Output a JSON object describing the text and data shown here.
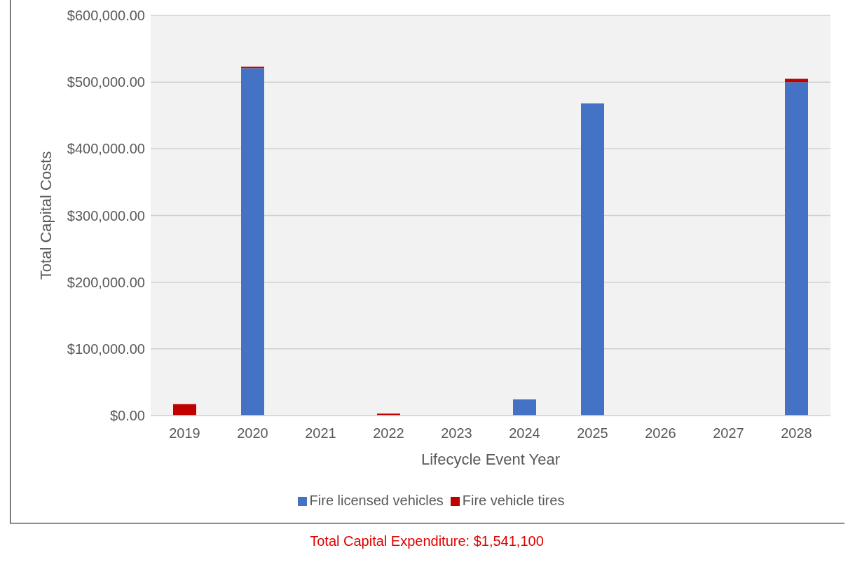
{
  "chart_data": {
    "type": "bar",
    "stacked": true,
    "xlabel": "Lifecycle Event Year",
    "ylabel": "Total Capital Costs",
    "categories": [
      "2019",
      "2020",
      "2021",
      "2022",
      "2023",
      "2024",
      "2025",
      "2026",
      "2027",
      "2028"
    ],
    "series": [
      {
        "name": "Fire licensed vehicles",
        "color": "#4472c4",
        "values": [
          0,
          521000,
          0,
          0,
          0,
          23000,
          468000,
          0,
          0,
          500000
        ]
      },
      {
        "name": "Fire vehicle tires",
        "color": "#c00000",
        "values": [
          17000,
          2000,
          0,
          3000,
          0,
          1000,
          0,
          0,
          0,
          5000
        ]
      }
    ],
    "ylim": [
      0,
      600000
    ],
    "yticks": [
      {
        "value": 0,
        "label": "$0.00"
      },
      {
        "value": 100000,
        "label": "$100,000.00"
      },
      {
        "value": 200000,
        "label": "$200,000.00"
      },
      {
        "value": 300000,
        "label": "$300,000.00"
      },
      {
        "value": 400000,
        "label": "$400,000.00"
      },
      {
        "value": 500000,
        "label": "$500,000.00"
      },
      {
        "value": 600000,
        "label": "$600,000.00"
      }
    ],
    "grid": "y",
    "legend": "bottom",
    "annotations": [
      "Total Capital Expenditure: $1,541,100"
    ]
  }
}
